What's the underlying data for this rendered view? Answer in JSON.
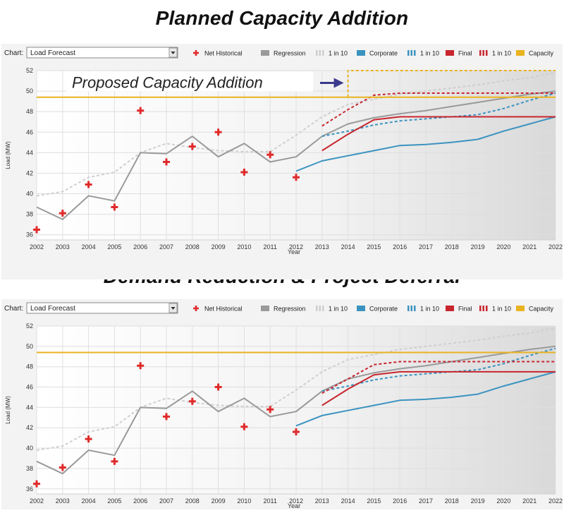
{
  "headlines": [
    "Planned Capacity Addition",
    "Demand Reduction & Project Deferral"
  ],
  "chart_label": "Chart:",
  "chart_select": "Load Forecast",
  "legend": [
    {
      "label": "Net Historical",
      "kind": "plus",
      "color": "#e02a2a"
    },
    {
      "label": "Regression",
      "kind": "solid",
      "color": "#9a9a9a"
    },
    {
      "label": "1 in 10",
      "kind": "dash",
      "color": "#cfcfcf"
    },
    {
      "label": "Corporate",
      "kind": "solid",
      "color": "#3b93c0"
    },
    {
      "label": "1 in 10",
      "kind": "dash",
      "color": "#3b93c0"
    },
    {
      "label": "Final",
      "kind": "solid",
      "color": "#c8262e"
    },
    {
      "label": "1 in 10",
      "kind": "dash",
      "color": "#c8262e"
    },
    {
      "label": "Capacity",
      "kind": "solid",
      "color": "#e9b320"
    }
  ],
  "annotation": "Proposed Capacity Addition",
  "chart_data": [
    {
      "type": "line",
      "title": "Planned Capacity Addition",
      "xlabel": "Year",
      "ylabel": "Load (MW)",
      "xlim": [
        2002,
        2022
      ],
      "ylim": [
        35.5,
        52
      ],
      "yticks": [
        36,
        38,
        40,
        42,
        44,
        46,
        48,
        50,
        52
      ],
      "xticks": [
        2002,
        2003,
        2004,
        2005,
        2006,
        2007,
        2008,
        2009,
        2010,
        2011,
        2012,
        2013,
        2014,
        2015,
        2016,
        2017,
        2018,
        2019,
        2020,
        2021,
        2022
      ],
      "points": {
        "name": "Net Historical",
        "x": [
          2002,
          2003,
          2004,
          2005,
          2006,
          2007,
          2008,
          2009,
          2010,
          2011,
          2012
        ],
        "y": [
          36.5,
          38.1,
          40.9,
          38.7,
          48.1,
          43.1,
          44.6,
          46.0,
          42.1,
          43.8,
          41.6
        ]
      },
      "series": [
        {
          "name": "1 in 10",
          "style": "dash",
          "color": "#cfcfcf",
          "x": [
            2002,
            2003,
            2004,
            2005,
            2006,
            2007,
            2008,
            2009,
            2010,
            2011,
            2012,
            2013,
            2014,
            2015,
            2016,
            2017,
            2018,
            2019,
            2020,
            2021,
            2022
          ],
          "y": [
            39.8,
            40.2,
            41.6,
            42.1,
            44.0,
            44.9,
            44.5,
            44.2,
            44.1,
            44.1,
            45.7,
            47.5,
            48.7,
            49.2,
            49.7,
            50.0,
            50.3,
            50.6,
            51.0,
            51.3,
            51.8
          ]
        },
        {
          "name": "Regression",
          "style": "solid",
          "color": "#9a9a9a",
          "x": [
            2002,
            2003,
            2004,
            2005,
            2006,
            2007,
            2008,
            2009,
            2010,
            2011,
            2012,
            2013,
            2014,
            2015,
            2016,
            2017,
            2018,
            2019,
            2020,
            2021,
            2022
          ],
          "y": [
            38.7,
            37.5,
            39.8,
            39.3,
            44.0,
            43.9,
            45.6,
            43.6,
            44.9,
            43.1,
            43.6,
            45.6,
            46.8,
            47.4,
            47.8,
            48.1,
            48.5,
            48.9,
            49.3,
            49.7,
            50.0
          ]
        },
        {
          "name": "Corporate",
          "style": "solid",
          "color": "#3b93c0",
          "x": [
            2012,
            2013,
            2014,
            2015,
            2016,
            2017,
            2018,
            2019,
            2020,
            2021,
            2022
          ],
          "y": [
            42.2,
            43.2,
            43.7,
            44.2,
            44.7,
            44.8,
            45.0,
            45.3,
            46.1,
            46.8,
            47.5
          ]
        },
        {
          "name": "1 in 10",
          "style": "dash",
          "color": "#3b93c0",
          "x": [
            2013,
            2014,
            2015,
            2016,
            2017,
            2018,
            2019,
            2020,
            2021,
            2022
          ],
          "y": [
            45.6,
            46.1,
            46.7,
            47.1,
            47.3,
            47.5,
            47.7,
            48.3,
            49.1,
            49.8
          ]
        },
        {
          "name": "Final",
          "style": "solid",
          "color": "#c8262e",
          "x": [
            2013,
            2014,
            2015,
            2016,
            2017,
            2018,
            2019,
            2020,
            2021,
            2022
          ],
          "y": [
            44.2,
            45.8,
            47.2,
            47.5,
            47.5,
            47.5,
            47.5,
            47.5,
            47.5,
            47.5
          ]
        },
        {
          "name": "1 in 10",
          "style": "dash",
          "color": "#c8262e",
          "x": [
            2013,
            2014,
            2015,
            2016,
            2017,
            2018,
            2019,
            2020,
            2021,
            2022
          ],
          "y": [
            46.6,
            48.2,
            49.6,
            49.8,
            49.8,
            49.8,
            49.8,
            49.8,
            49.8,
            49.8
          ]
        },
        {
          "name": "Capacity",
          "style": "solid",
          "color": "#e9b320",
          "x": [
            2002,
            2014
          ],
          "y": [
            49.4,
            49.4
          ]
        },
        {
          "name": "Capacity",
          "style": "dash",
          "color": "#e9b320",
          "x": [
            2014,
            2014,
            2022
          ],
          "y": [
            49.4,
            52.0,
            52.0
          ]
        },
        {
          "name": "Capacity",
          "style": "solid",
          "color": "#e9b320",
          "x": [
            2014,
            2022
          ],
          "y": [
            49.4,
            49.4
          ]
        }
      ]
    },
    {
      "type": "line",
      "title": "Demand Reduction & Project Deferral",
      "xlabel": "Year",
      "ylabel": "Load (MW)",
      "xlim": [
        2002,
        2022
      ],
      "ylim": [
        35.5,
        52
      ],
      "yticks": [
        36,
        38,
        40,
        42,
        44,
        46,
        48,
        50,
        52
      ],
      "xticks": [
        2002,
        2003,
        2004,
        2005,
        2006,
        2007,
        2008,
        2009,
        2010,
        2011,
        2012,
        2013,
        2014,
        2015,
        2016,
        2017,
        2018,
        2019,
        2020,
        2021,
        2022
      ],
      "points": {
        "name": "Net Historical",
        "x": [
          2002,
          2003,
          2004,
          2005,
          2006,
          2007,
          2008,
          2009,
          2010,
          2011,
          2012
        ],
        "y": [
          36.5,
          38.1,
          40.9,
          38.7,
          48.1,
          43.1,
          44.6,
          46.0,
          42.1,
          43.8,
          41.6
        ]
      },
      "series": [
        {
          "name": "1 in 10",
          "style": "dash",
          "color": "#cfcfcf",
          "x": [
            2002,
            2003,
            2004,
            2005,
            2006,
            2007,
            2008,
            2009,
            2010,
            2011,
            2012,
            2013,
            2014,
            2015,
            2016,
            2017,
            2018,
            2019,
            2020,
            2021,
            2022
          ],
          "y": [
            39.8,
            40.2,
            41.6,
            42.1,
            44.0,
            44.9,
            44.5,
            44.2,
            44.1,
            44.1,
            45.7,
            47.5,
            48.7,
            49.2,
            49.7,
            50.0,
            50.3,
            50.6,
            51.0,
            51.3,
            51.8
          ]
        },
        {
          "name": "Regression",
          "style": "solid",
          "color": "#9a9a9a",
          "x": [
            2002,
            2003,
            2004,
            2005,
            2006,
            2007,
            2008,
            2009,
            2010,
            2011,
            2012,
            2013,
            2014,
            2015,
            2016,
            2017,
            2018,
            2019,
            2020,
            2021,
            2022
          ],
          "y": [
            38.7,
            37.5,
            39.8,
            39.3,
            44.0,
            43.9,
            45.6,
            43.6,
            44.9,
            43.1,
            43.6,
            45.6,
            46.8,
            47.4,
            47.8,
            48.1,
            48.5,
            48.9,
            49.3,
            49.7,
            50.0
          ]
        },
        {
          "name": "Corporate",
          "style": "solid",
          "color": "#3b93c0",
          "x": [
            2012,
            2013,
            2014,
            2015,
            2016,
            2017,
            2018,
            2019,
            2020,
            2021,
            2022
          ],
          "y": [
            42.2,
            43.2,
            43.7,
            44.2,
            44.7,
            44.8,
            45.0,
            45.3,
            46.1,
            46.8,
            47.5
          ]
        },
        {
          "name": "1 in 10",
          "style": "dash",
          "color": "#3b93c0",
          "x": [
            2013,
            2014,
            2015,
            2016,
            2017,
            2018,
            2019,
            2020,
            2021,
            2022
          ],
          "y": [
            45.6,
            46.1,
            46.7,
            47.1,
            47.3,
            47.5,
            47.7,
            48.3,
            49.1,
            49.8
          ]
        },
        {
          "name": "Final",
          "style": "solid",
          "color": "#c8262e",
          "x": [
            2013,
            2014,
            2015,
            2016,
            2017,
            2018,
            2019,
            2020,
            2021,
            2022
          ],
          "y": [
            44.2,
            45.8,
            47.2,
            47.5,
            47.5,
            47.5,
            47.5,
            47.5,
            47.5,
            47.5
          ]
        },
        {
          "name": "1 in 10",
          "style": "dash",
          "color": "#c8262e",
          "x": [
            2013,
            2014,
            2015,
            2016,
            2017,
            2018,
            2019,
            2020,
            2021,
            2022
          ],
          "y": [
            45.4,
            46.8,
            48.2,
            48.5,
            48.5,
            48.5,
            48.5,
            48.5,
            48.5,
            48.5
          ]
        },
        {
          "name": "Capacity",
          "style": "solid",
          "color": "#e9b320",
          "x": [
            2002,
            2022
          ],
          "y": [
            49.4,
            49.4
          ]
        }
      ]
    }
  ]
}
